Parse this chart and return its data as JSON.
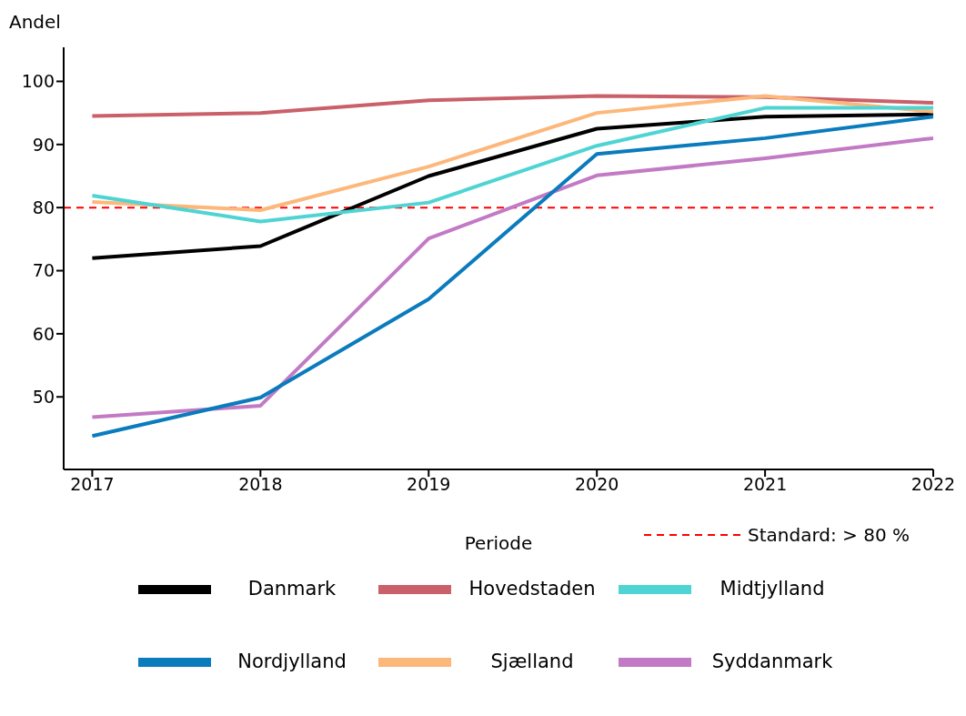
{
  "chart_data": {
    "type": "line",
    "xlabel": "Periode",
    "ylabel": "Andel",
    "x": [
      2017,
      2018,
      2019,
      2020,
      2021,
      2022
    ],
    "xlim": [
      2016.83,
      2022
    ],
    "xticks": [
      2017,
      2018,
      2019,
      2020,
      2021,
      2022
    ],
    "ylim": [
      38.5,
      105.4
    ],
    "yticks": [
      50,
      60,
      70,
      80,
      90,
      100
    ],
    "grid": false,
    "legend": "bottom",
    "marker": "none",
    "line_style": "solid",
    "ref_lines": [
      {
        "axis": "y",
        "value": 80,
        "label": "Standard: > 80 %",
        "color": "#ff0000",
        "line_style": "dashed"
      }
    ],
    "series": [
      {
        "name": "Danmark",
        "color": "#000000",
        "values": [
          72,
          73.9,
          85,
          92.5,
          94.4,
          94.8
        ]
      },
      {
        "name": "Hovedstaden",
        "color": "#c9606a",
        "values": [
          94.5,
          95,
          97,
          97.7,
          97.5,
          96.6
        ]
      },
      {
        "name": "Sjælland",
        "color": "#fdb77a",
        "values": [
          80.9,
          79.6,
          86.5,
          95,
          97.7,
          95.2
        ]
      },
      {
        "name": "Syddanmark",
        "color": "#c27ac4",
        "values": [
          46.8,
          48.6,
          75.1,
          85.1,
          87.8,
          91
        ]
      },
      {
        "name": "Midtjylland",
        "color": "#4fd4d4",
        "values": [
          81.9,
          77.8,
          80.8,
          89.8,
          95.8,
          95.8
        ]
      },
      {
        "name": "Nordjylland",
        "color": "#0a7bbd",
        "values": [
          43.8,
          49.9,
          65.5,
          88.5,
          91,
          94.4
        ]
      }
    ]
  }
}
